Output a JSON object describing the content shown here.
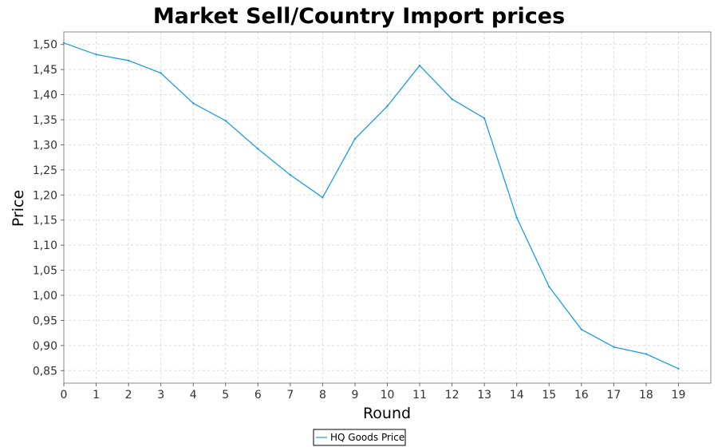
{
  "colors": {
    "series": "#1e9be6",
    "grid": "#dcdcdc",
    "plot_border": "#888888",
    "background": "#ffffff"
  },
  "chart_data": {
    "type": "line",
    "title": "Market Sell/Country Import prices",
    "xlabel": "Round",
    "ylabel": "Price",
    "x": [
      0,
      1,
      2,
      3,
      4,
      5,
      6,
      7,
      8,
      9,
      10,
      11,
      12,
      13,
      14,
      15,
      16,
      17,
      18,
      19
    ],
    "series": [
      {
        "name": "HQ Goods Price",
        "values": [
          1.503,
          1.48,
          1.468,
          1.443,
          1.383,
          1.348,
          1.292,
          1.24,
          1.195,
          1.312,
          1.377,
          1.458,
          1.391,
          1.353,
          1.155,
          1.017,
          0.932,
          0.897,
          0.883,
          0.854
        ]
      }
    ],
    "xlim": [
      0,
      20
    ],
    "ylim": [
      0.825,
      1.525
    ],
    "x_ticks": [
      "0",
      "1",
      "2",
      "3",
      "4",
      "5",
      "6",
      "7",
      "8",
      "9",
      "10",
      "11",
      "12",
      "13",
      "14",
      "15",
      "16",
      "17",
      "18",
      "19"
    ],
    "y_ticks": [
      "0,85",
      "0,90",
      "0,95",
      "1,00",
      "1,05",
      "1,10",
      "1,15",
      "1,20",
      "1,25",
      "1,30",
      "1,35",
      "1,40",
      "1,45",
      "1,50"
    ],
    "grid": true,
    "legend_position": "bottom-center"
  }
}
